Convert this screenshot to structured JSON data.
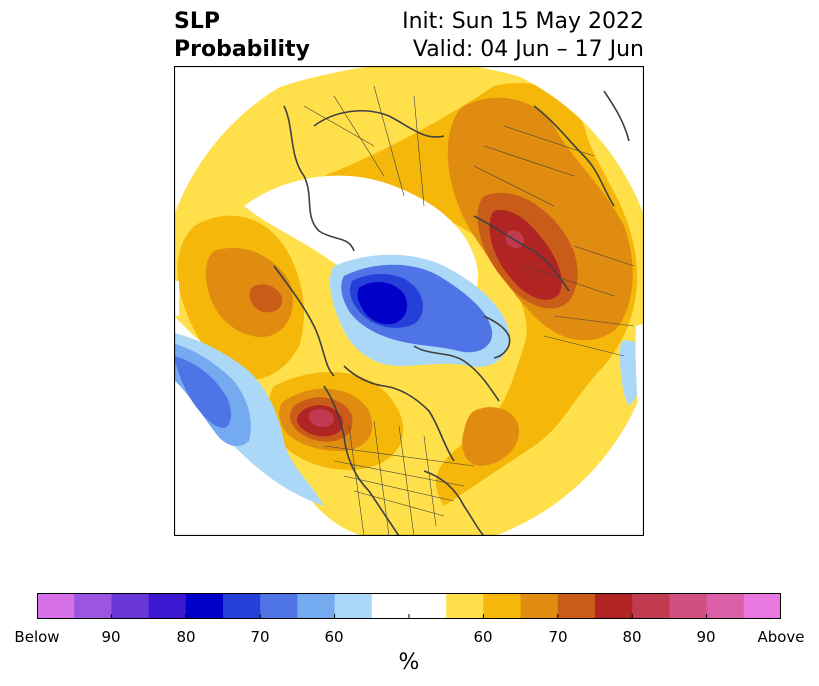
{
  "title": {
    "left_line1": "SLP",
    "left_line2": "Probability",
    "right_line1": "Init: Sun 15 May 2022",
    "right_line2": "Valid: 04 Jun – 17 Jun"
  },
  "colorbar": {
    "colors": [
      "#d670e8",
      "#9b55e0",
      "#6a38d8",
      "#3c18d0",
      "#0000c8",
      "#2440d8",
      "#4f74e6",
      "#74aaf0",
      "#acd8f8",
      "#ffffff",
      "#ffffff",
      "#ffe04a",
      "#f5b80a",
      "#e08c10",
      "#c85c18",
      "#b02424",
      "#c03a50",
      "#d05080",
      "#dc60a8",
      "#e878e0"
    ],
    "tick_labels": [
      "Below",
      "90",
      "80",
      "70",
      "60",
      "",
      "60",
      "70",
      "80",
      "90",
      "Above"
    ],
    "unit": "%"
  },
  "map": {
    "projection": "north-polar-stereographic",
    "regions": [
      {
        "name": "pacific-west-below",
        "category": "below",
        "level": "60-70"
      },
      {
        "name": "arctic-below",
        "category": "below",
        "level": "80-90"
      },
      {
        "name": "scandinavia-above",
        "category": "above",
        "level": "60-70"
      },
      {
        "name": "western-russia-above",
        "category": "above",
        "level": "80-90"
      },
      {
        "name": "northeast-pacific-above",
        "category": "above",
        "level": "80-90"
      },
      {
        "name": "siberia-above",
        "category": "above",
        "level": "70-80"
      },
      {
        "name": "eastern-north-america-above",
        "category": "above",
        "level": "60-70"
      }
    ]
  }
}
